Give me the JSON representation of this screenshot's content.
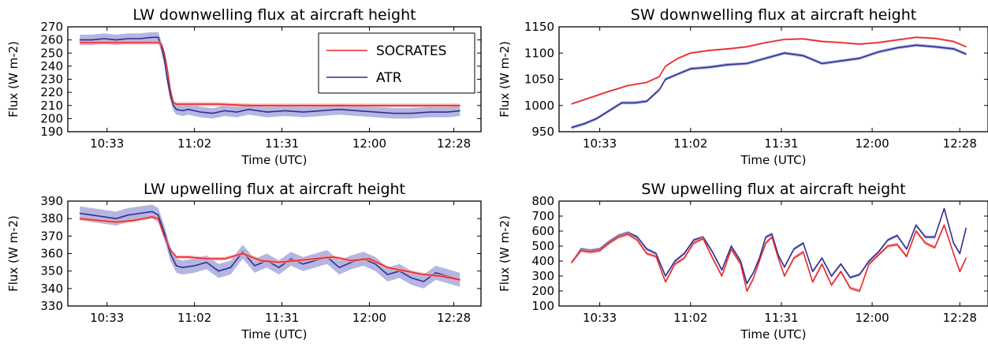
{
  "colors": {
    "socrates": "#e8292b",
    "atr": "#2e3192",
    "atr_band": "#a7a9dd",
    "socrates_band": "#f4a3a3"
  },
  "legend": {
    "entries": [
      "SOCRATES",
      "ATR"
    ],
    "placement": "top-right",
    "panel": 0
  },
  "chart_data": [
    {
      "type": "line",
      "title": "LW downwelling flux at aircraft height",
      "xlabel": "Time (UTC)",
      "ylabel": "Flux (W m-2)",
      "x_ticks": [
        "10:33",
        "11:02",
        "11:31",
        "12:00",
        "12:28"
      ],
      "x_tick_minutes": [
        633,
        662,
        691,
        720,
        748
      ],
      "xlim": [
        620,
        757
      ],
      "ylim": [
        190,
        270
      ],
      "y_ticks": [
        190,
        200,
        210,
        220,
        230,
        240,
        250,
        260,
        270
      ],
      "series": [
        {
          "name": "SOCRATES",
          "band": 1.5,
          "x": [
            624,
            630,
            636,
            640,
            645,
            650,
            651,
            652,
            653,
            654,
            655,
            656,
            660,
            665,
            670,
            680,
            690,
            700,
            710,
            720,
            730,
            740,
            750
          ],
          "y": [
            258,
            258,
            258,
            258,
            258,
            258,
            257,
            250,
            238,
            222,
            212,
            211,
            211,
            211,
            211,
            210,
            210,
            210,
            210,
            210,
            210,
            210,
            210
          ]
        },
        {
          "name": "ATR",
          "band": 4,
          "x": [
            624,
            628,
            632,
            636,
            640,
            644,
            648,
            650,
            651,
            652,
            653,
            654,
            655,
            656,
            658,
            660,
            664,
            668,
            672,
            676,
            680,
            686,
            692,
            698,
            704,
            710,
            716,
            722,
            728,
            734,
            740,
            746,
            750
          ],
          "y": [
            260,
            260,
            261,
            260,
            261,
            261,
            262,
            262,
            255,
            245,
            230,
            218,
            210,
            207,
            206,
            207,
            205,
            204,
            206,
            205,
            207,
            205,
            206,
            205,
            206,
            207,
            206,
            205,
            204,
            204,
            205,
            205,
            206
          ]
        }
      ]
    },
    {
      "type": "line",
      "title": "SW downwelling flux at aircraft height",
      "xlabel": "Time (UTC)",
      "ylabel": "Flux (W m-2)",
      "x_ticks": [
        "10:33",
        "11:02",
        "11:31",
        "12:00",
        "12:28"
      ],
      "x_tick_minutes": [
        633,
        662,
        691,
        720,
        748
      ],
      "xlim": [
        620,
        757
      ],
      "ylim": [
        950,
        1150
      ],
      "y_ticks": [
        950,
        1000,
        1050,
        1100,
        1150
      ],
      "series": [
        {
          "name": "SOCRATES",
          "band": 2,
          "x": [
            624,
            630,
            636,
            642,
            648,
            652,
            654,
            658,
            662,
            668,
            674,
            680,
            686,
            692,
            698,
            704,
            710,
            716,
            722,
            728,
            734,
            740,
            746,
            750
          ],
          "y": [
            1003,
            1015,
            1027,
            1038,
            1044,
            1055,
            1075,
            1090,
            1100,
            1105,
            1108,
            1112,
            1120,
            1126,
            1127,
            1122,
            1120,
            1117,
            1120,
            1125,
            1130,
            1128,
            1122,
            1112
          ]
        },
        {
          "name": "ATR",
          "band": 3,
          "x": [
            624,
            628,
            632,
            636,
            640,
            644,
            648,
            652,
            654,
            658,
            662,
            668,
            674,
            680,
            686,
            692,
            698,
            704,
            710,
            716,
            722,
            728,
            734,
            740,
            746,
            750
          ],
          "y": [
            958,
            965,
            975,
            990,
            1005,
            1005,
            1008,
            1030,
            1050,
            1060,
            1070,
            1073,
            1078,
            1080,
            1090,
            1100,
            1095,
            1080,
            1085,
            1090,
            1102,
            1110,
            1115,
            1112,
            1108,
            1098
          ]
        }
      ]
    },
    {
      "type": "line",
      "title": "LW upwelling flux at aircraft height",
      "xlabel": "Time (UTC)",
      "ylabel": "Flux (W m-2)",
      "x_ticks": [
        "10:33",
        "11:02",
        "11:31",
        "12:00",
        "12:28"
      ],
      "x_tick_minutes": [
        633,
        662,
        691,
        720,
        748
      ],
      "xlim": [
        620,
        757
      ],
      "ylim": [
        330,
        390
      ],
      "y_ticks": [
        330,
        340,
        350,
        360,
        370,
        380,
        390
      ],
      "series": [
        {
          "name": "SOCRATES",
          "band": 1,
          "x": [
            624,
            630,
            636,
            642,
            648,
            650,
            652,
            654,
            656,
            660,
            666,
            672,
            678,
            684,
            690,
            696,
            702,
            708,
            714,
            720,
            726,
            732,
            738,
            744,
            750
          ],
          "y": [
            380,
            379,
            378,
            379,
            381,
            380,
            370,
            362,
            358,
            358,
            357,
            357,
            360,
            356,
            355,
            356,
            357,
            358,
            356,
            357,
            352,
            350,
            348,
            347,
            345
          ]
        },
        {
          "name": "ATR",
          "band": 4,
          "x": [
            624,
            628,
            632,
            636,
            640,
            644,
            648,
            650,
            652,
            654,
            656,
            658,
            662,
            666,
            670,
            674,
            678,
            682,
            686,
            690,
            694,
            698,
            702,
            706,
            710,
            714,
            718,
            722,
            726,
            730,
            734,
            738,
            742,
            746,
            750
          ],
          "y": [
            383,
            382,
            381,
            380,
            382,
            383,
            384,
            382,
            372,
            360,
            353,
            352,
            353,
            355,
            350,
            352,
            361,
            353,
            356,
            352,
            357,
            354,
            356,
            358,
            352,
            355,
            357,
            354,
            348,
            350,
            346,
            344,
            349,
            347,
            345
          ]
        }
      ]
    },
    {
      "type": "line",
      "title": "SW upwelling flux at aircraft height",
      "xlabel": "Time (UTC)",
      "ylabel": "Flux (W m-2)",
      "x_ticks": [
        "10:33",
        "11:02",
        "11:31",
        "12:00",
        "12:28"
      ],
      "x_tick_minutes": [
        633,
        662,
        691,
        720,
        748
      ],
      "xlim": [
        620,
        757
      ],
      "ylim": [
        100,
        800
      ],
      "y_ticks": [
        100,
        200,
        300,
        400,
        500,
        600,
        700,
        800
      ],
      "series": [
        {
          "name": "SOCRATES",
          "band": 12,
          "x": [
            624,
            627,
            630,
            633,
            636,
            639,
            642,
            645,
            648,
            651,
            654,
            657,
            660,
            663,
            666,
            669,
            672,
            675,
            678,
            680,
            682,
            684,
            686,
            688,
            690,
            692,
            695,
            698,
            701,
            704,
            707,
            710,
            713,
            716,
            719,
            722,
            725,
            728,
            731,
            734,
            737,
            740,
            743,
            746,
            748,
            750
          ],
          "y": [
            390,
            470,
            460,
            470,
            520,
            560,
            580,
            540,
            450,
            430,
            260,
            380,
            420,
            520,
            550,
            420,
            300,
            480,
            380,
            200,
            280,
            400,
            520,
            560,
            420,
            300,
            420,
            460,
            260,
            380,
            240,
            330,
            220,
            200,
            380,
            440,
            500,
            510,
            430,
            600,
            520,
            490,
            640,
            450,
            330,
            420
          ]
        },
        {
          "name": "ATR",
          "band": 10,
          "x": [
            624,
            627,
            630,
            633,
            636,
            639,
            642,
            645,
            648,
            651,
            654,
            657,
            660,
            663,
            666,
            669,
            672,
            675,
            678,
            680,
            682,
            684,
            686,
            688,
            690,
            692,
            695,
            698,
            701,
            704,
            707,
            710,
            713,
            716,
            719,
            722,
            725,
            728,
            731,
            734,
            737,
            740,
            743,
            746,
            748,
            750
          ],
          "y": [
            390,
            480,
            470,
            480,
            530,
            570,
            590,
            560,
            480,
            450,
            300,
            400,
            450,
            540,
            560,
            460,
            340,
            500,
            400,
            250,
            320,
            420,
            560,
            580,
            440,
            360,
            480,
            520,
            330,
            420,
            300,
            380,
            290,
            310,
            400,
            460,
            540,
            570,
            480,
            640,
            560,
            560,
            750,
            520,
            450,
            620
          ]
        }
      ]
    }
  ]
}
